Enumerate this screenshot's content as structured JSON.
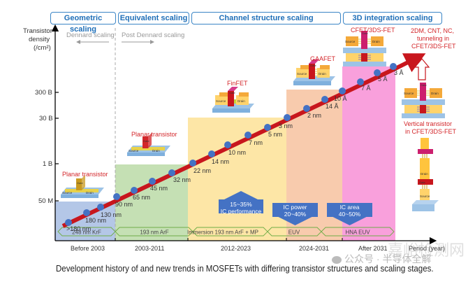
{
  "header_stages": [
    {
      "label": "Geometric scaling"
    },
    {
      "label": "Equivalent scaling"
    },
    {
      "label": "Channel structure scaling"
    },
    {
      "label": "3D integration scaling"
    }
  ],
  "y_axis": {
    "label_line1": "Transistor",
    "label_line2": "density",
    "label_line3": "(/cm²)",
    "ticks": [
      "300 B",
      "30 B",
      "1 B",
      "50 M"
    ]
  },
  "x_axis": {
    "label": "Period (year)",
    "periods": [
      "Before 2003",
      "2003-2011",
      "2012-2023",
      "2024-2031",
      "After 2031"
    ]
  },
  "dennard": {
    "left": "Dennard scaling",
    "right": "Post Dennard scaling"
  },
  "transistor_types": {
    "planar_1": "Planar transistor",
    "planar_2": "Planar transistor",
    "finfet": "FinFET",
    "gaafet": "GAAFET",
    "cfet": "CFET/3DS-FET",
    "future": "2DM, CNT, NC, tunneling in CFET/3DS-FET",
    "future_l1": "2DM, CNT, NC,",
    "future_l2": "tunneling in",
    "future_l3": "CFET/3DS-FET",
    "vertical_l1": "Vertical transistor",
    "vertical_l2": "in CFET/3DS-FET"
  },
  "device_labels": {
    "source": "Source",
    "drain": "Drain",
    "gate": "Gate"
  },
  "nodes": [
    ">180 nm",
    "180 nm",
    "130 nm",
    "90 nm",
    "65 nm",
    "45 nm",
    "32 nm",
    "22 nm",
    "14 nm",
    "10 nm",
    "7 nm",
    "5 nm",
    "3 nm",
    "2 nm",
    "14 Å",
    "10 Å",
    "7 Å",
    "5 Å",
    "3 Å"
  ],
  "lithography": [
    "248 nm KrF",
    "193 nm ArF",
    "Immersion 193 nm ArF + MP",
    "EUV",
    "HNA EUV"
  ],
  "benefits": [
    {
      "line1": "15~35%",
      "line2": "IC performance",
      "direction": "up"
    },
    {
      "line1": "IC power",
      "line2": "20~40%",
      "direction": "down"
    },
    {
      "line1": "IC area",
      "line2": "40~50%",
      "direction": "down"
    }
  ],
  "caption": "Development history of and new trends in MOSFETs with differing transistor structures and scaling stages.",
  "watermark": {
    "wechat": "公众号 · 半导体全解",
    "site": "嘉峪检测网"
  },
  "colors": {
    "header_border": "#3a85c6",
    "header_text": "#1f6fb8",
    "trend_line": "#c8161d",
    "node_dot": "#4472c4",
    "zone_geometric": "#b4c7e7",
    "zone_equivalent": "#c5e0b4",
    "zone_channel": "#fde6a6",
    "zone_gaa": "#f8cbad",
    "zone_3d": "#f9a0dc",
    "benefit_arrow": "#4472c4",
    "litho_border": "#70ad47"
  }
}
